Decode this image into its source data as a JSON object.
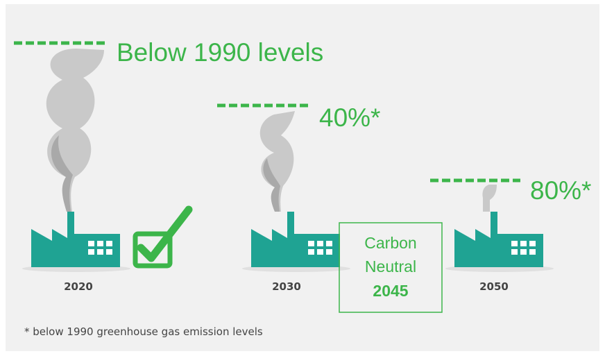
{
  "stages": [
    {
      "label": "Below 1990 levels",
      "year": "2020"
    },
    {
      "label": "40%*",
      "year": "2030"
    },
    {
      "label": "80%*",
      "year": "2050"
    }
  ],
  "carbon_neutral": {
    "line1": "Carbon",
    "line2": "Neutral",
    "year": "2045"
  },
  "footnote": "* below 1990 greenhouse gas emission levels"
}
